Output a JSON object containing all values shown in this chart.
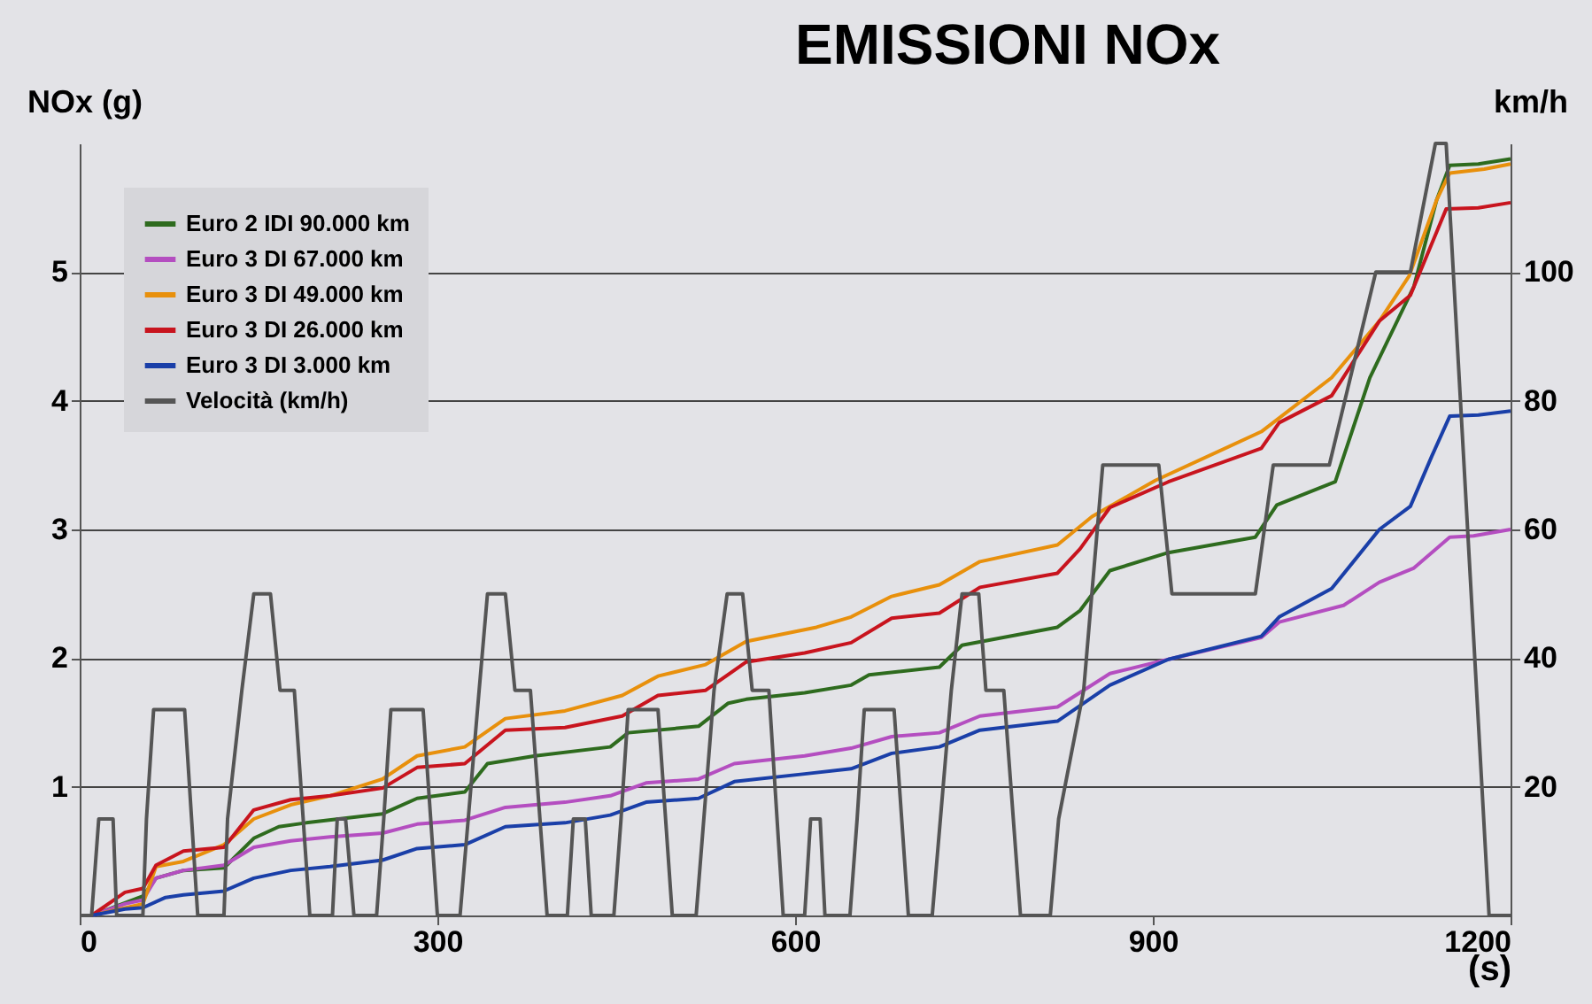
{
  "chart_data": {
    "type": "line",
    "title": "EMISSIONI NOx",
    "xlabel": "(s)",
    "ylabel": "NOx (g)",
    "y2label": "km/h",
    "xlim": [
      0,
      1200
    ],
    "xticks": [
      0,
      300,
      600,
      900,
      1200
    ],
    "ylim": [
      0,
      6
    ],
    "yticks": [
      1,
      2,
      3,
      4,
      5
    ],
    "y2lim": [
      0,
      120
    ],
    "y2ticks": [
      20,
      40,
      60,
      80,
      100
    ],
    "grid": "y",
    "legend": "top left",
    "line_style": "solid",
    "series": [
      {
        "name": "Euro 2 IDI 90.000 km",
        "color": "#2e6b1e",
        "x": [
          10,
          53,
          64,
          87,
          121,
          146,
          167,
          190,
          254,
          283,
          323,
          342,
          382,
          445,
          460,
          519,
          544,
          559,
          608,
          647,
          662,
          721,
          740,
          820,
          839,
          864,
          913,
          986,
          1004,
          1053,
          1082,
          1119,
          1138,
          1149,
          1173,
          1200
        ],
        "values": [
          0,
          0.15,
          0.29,
          0.35,
          0.37,
          0.6,
          0.69,
          0.72,
          0.79,
          0.91,
          0.96,
          1.18,
          1.24,
          1.31,
          1.42,
          1.47,
          1.65,
          1.68,
          1.73,
          1.79,
          1.87,
          1.93,
          2.1,
          2.24,
          2.37,
          2.68,
          2.82,
          2.94,
          3.19,
          3.37,
          4.18,
          4.89,
          5.56,
          5.83,
          5.84,
          5.88
        ]
      },
      {
        "name": "Euro 3 DI 67.000 km",
        "color": "#b44ec0",
        "x": [
          10,
          38,
          53,
          64,
          87,
          121,
          146,
          177,
          210,
          254,
          283,
          323,
          357,
          407,
          445,
          475,
          519,
          549,
          608,
          647,
          681,
          721,
          755,
          820,
          864,
          913,
          991,
          1006,
          1060,
          1090,
          1119,
          1149,
          1169,
          1200
        ],
        "values": [
          0,
          0.09,
          0.12,
          0.29,
          0.35,
          0.39,
          0.53,
          0.58,
          0.61,
          0.64,
          0.71,
          0.74,
          0.84,
          0.88,
          0.93,
          1.03,
          1.06,
          1.18,
          1.24,
          1.3,
          1.39,
          1.42,
          1.55,
          1.62,
          1.88,
          1.99,
          2.16,
          2.28,
          2.41,
          2.59,
          2.7,
          2.94,
          2.95,
          3.0
        ]
      },
      {
        "name": "Euro 3 DI 49.000 km",
        "color": "#e8900c",
        "x": [
          10,
          53,
          64,
          87,
          121,
          146,
          177,
          210,
          254,
          283,
          323,
          357,
          407,
          455,
          485,
          525,
          559,
          618,
          647,
          681,
          721,
          755,
          820,
          849,
          902,
          991,
          1050,
          1090,
          1115,
          1138,
          1149,
          1178,
          1200
        ],
        "values": [
          0,
          0.09,
          0.38,
          0.42,
          0.55,
          0.75,
          0.86,
          0.93,
          1.06,
          1.24,
          1.31,
          1.53,
          1.59,
          1.71,
          1.86,
          1.95,
          2.13,
          2.24,
          2.32,
          2.48,
          2.57,
          2.75,
          2.88,
          3.1,
          3.38,
          3.76,
          4.18,
          4.62,
          4.97,
          5.56,
          5.77,
          5.8,
          5.84
        ]
      },
      {
        "name": "Euro 3 DI 26.000 km",
        "color": "#c8141e",
        "x": [
          10,
          38,
          53,
          64,
          87,
          121,
          146,
          177,
          210,
          254,
          283,
          323,
          357,
          407,
          455,
          485,
          525,
          559,
          608,
          647,
          681,
          721,
          755,
          820,
          839,
          864,
          913,
          991,
          1006,
          1050,
          1090,
          1116,
          1146,
          1173,
          1200
        ],
        "values": [
          0,
          0.18,
          0.21,
          0.39,
          0.5,
          0.53,
          0.82,
          0.9,
          0.93,
          0.99,
          1.15,
          1.18,
          1.44,
          1.46,
          1.55,
          1.71,
          1.75,
          1.97,
          2.04,
          2.12,
          2.31,
          2.35,
          2.55,
          2.66,
          2.85,
          3.17,
          3.37,
          3.63,
          3.83,
          4.04,
          4.62,
          4.82,
          5.49,
          5.5,
          5.54
        ]
      },
      {
        "name": "Euro 3 DI 3.000 km",
        "color": "#1a3fa8",
        "x": [
          10,
          38,
          53,
          72,
          87,
          121,
          146,
          177,
          210,
          254,
          283,
          323,
          357,
          407,
          445,
          475,
          519,
          549,
          608,
          647,
          681,
          721,
          755,
          820,
          864,
          913,
          991,
          1006,
          1050,
          1090,
          1116,
          1134,
          1149,
          1173,
          1200
        ],
        "values": [
          0,
          0.05,
          0.06,
          0.14,
          0.16,
          0.19,
          0.29,
          0.35,
          0.38,
          0.43,
          0.52,
          0.55,
          0.69,
          0.72,
          0.78,
          0.88,
          0.91,
          1.04,
          1.1,
          1.14,
          1.26,
          1.31,
          1.44,
          1.51,
          1.79,
          1.99,
          2.17,
          2.32,
          2.54,
          3.0,
          3.18,
          3.57,
          3.88,
          3.89,
          3.92
        ]
      },
      {
        "name": "Velocità (km/h)",
        "color": "#555555",
        "axis": "y2",
        "x": [
          0,
          10,
          16,
          28,
          31,
          53,
          56,
          62,
          88,
          99,
          121,
          124,
          136,
          146,
          160,
          168,
          180,
          193,
          212,
          216,
          223,
          230,
          249,
          255,
          261,
          288,
          300,
          319,
          335,
          342,
          357,
          365,
          378,
          392,
          409,
          414,
          424,
          429,
          448,
          454,
          460,
          485,
          497,
          517,
          532,
          543,
          556,
          564,
          578,
          590,
          608,
          613,
          621,
          625,
          646,
          652,
          658,
          683,
          695,
          715,
          731,
          740,
          754,
          760,
          775,
          789,
          814,
          821,
          842,
          858,
          905,
          916,
          986,
          1001,
          1048,
          1087,
          1116,
          1137,
          1146,
          1182,
          1200
        ],
        "values": [
          0,
          0,
          15,
          15,
          0,
          0,
          15,
          32,
          32,
          0,
          0,
          15,
          35,
          50,
          50,
          35,
          35,
          0,
          0,
          15,
          15,
          0,
          0,
          15,
          32,
          32,
          0,
          0,
          35,
          50,
          50,
          35,
          35,
          0,
          0,
          15,
          15,
          0,
          0,
          15,
          32,
          32,
          0,
          0,
          35,
          50,
          50,
          35,
          35,
          0,
          0,
          15,
          15,
          0,
          0,
          15,
          32,
          32,
          0,
          0,
          35,
          50,
          50,
          35,
          35,
          0,
          0,
          15,
          35,
          70,
          70,
          50,
          50,
          70,
          70,
          100,
          100,
          120,
          120,
          0,
          0
        ]
      }
    ]
  }
}
